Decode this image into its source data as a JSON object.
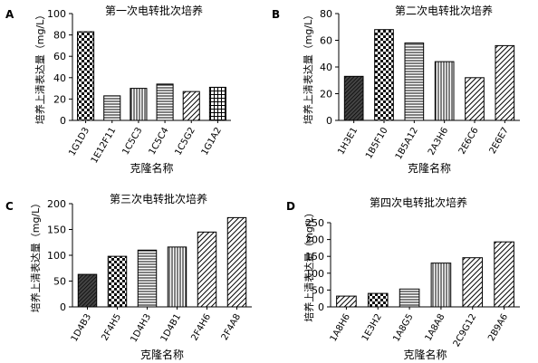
{
  "chart_data": [
    {
      "type": "bar",
      "panel_letter": "A",
      "title": "第一次电转批次培养",
      "xlabel": "克隆名称",
      "ylabel": "培养上清表达量（mg/L）",
      "ylim": [
        0,
        100
      ],
      "yticks": [
        0,
        20,
        40,
        60,
        80,
        100
      ],
      "categories": [
        "1G1D3",
        "1E12F11",
        "1C5C3",
        "1C5C4",
        "1C5G2",
        "1G1A2"
      ],
      "values": [
        83,
        23,
        30,
        34,
        27,
        31
      ],
      "patterns": [
        "check",
        "hlines",
        "vlines",
        "hlines",
        "diag",
        "grid"
      ]
    },
    {
      "type": "bar",
      "panel_letter": "B",
      "title": "第二次电转批次培养",
      "xlabel": "克隆名称",
      "ylabel": "培养上清表达量（mg/L）",
      "ylim": [
        0,
        80
      ],
      "yticks": [
        0,
        20,
        40,
        60,
        80
      ],
      "categories": [
        "1H3E1",
        "1B5F10",
        "1B5A12",
        "2A3H6",
        "2E6C6",
        "2E6E7"
      ],
      "values": [
        33,
        68,
        58,
        44,
        32,
        56
      ],
      "patterns": [
        "dense",
        "check",
        "hlines",
        "vlines",
        "diag",
        "diag"
      ]
    },
    {
      "type": "bar",
      "panel_letter": "C",
      "title": "第三次电转批次培养",
      "xlabel": "克隆名称",
      "ylabel": "培养上清表达量（mg/L）",
      "ylim": [
        0,
        200
      ],
      "yticks": [
        0,
        50,
        100,
        150,
        200
      ],
      "categories": [
        "1D4B3",
        "2F4H5",
        "1D4H3",
        "1D4B1",
        "2F4H6",
        "2F4A8"
      ],
      "values": [
        63,
        98,
        110,
        116,
        145,
        173
      ],
      "patterns": [
        "dense",
        "check",
        "hlines",
        "vlines",
        "diag",
        "diag"
      ]
    },
    {
      "type": "bar",
      "panel_letter": "D",
      "title": "第四次电转批次培养",
      "xlabel": "克隆名称",
      "ylabel": "培养上清表达量（mg/L）",
      "ylim": [
        0,
        250
      ],
      "yticks": [
        0,
        50,
        100,
        150,
        200,
        250
      ],
      "categories": [
        "1A8H6",
        "1E3H2",
        "1A8G5",
        "1A8A8",
        "2C9G12",
        "2B9A6"
      ],
      "values": [
        32,
        40,
        53,
        130,
        146,
        193
      ],
      "patterns": [
        "diag",
        "check",
        "hlines",
        "vlines",
        "diag",
        "diag"
      ]
    }
  ]
}
